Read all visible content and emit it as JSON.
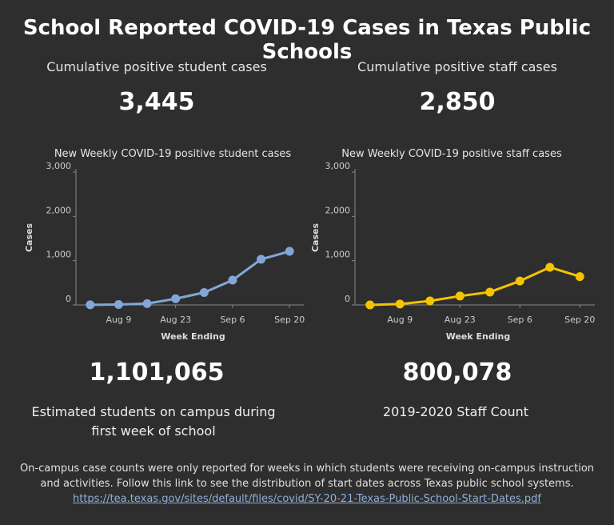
{
  "title": "School Reported COVID-19 Cases in Texas Public Schools",
  "stats": [
    {
      "label": "Cumulative positive student cases",
      "value": "3,445"
    },
    {
      "label": "Cumulative positive staff cases",
      "value": "2,850"
    }
  ],
  "chart_data": [
    {
      "type": "line",
      "title": "New Weekly COVID-19 positive student cases",
      "x_label": "Week Ending",
      "y_label": "Cases",
      "categories": [
        null,
        "Aug 9",
        null,
        "Aug 23",
        null,
        "Sep 6",
        null,
        "Sep 20"
      ],
      "values": [
        2,
        10,
        30,
        140,
        280,
        560,
        1030,
        1210
      ],
      "color": "#82a6d8",
      "ylim": [
        0,
        3000
      ],
      "yticks": [
        0,
        {
          "value": 1000,
          "label": "1,000"
        },
        {
          "value": 2000,
          "label": "2,000"
        },
        {
          "value": 3000,
          "label": "3,000"
        }
      ]
    },
    {
      "type": "line",
      "title": "New Weekly COVID-19 positive staff cases",
      "x_label": "Week Ending",
      "y_label": "Cases",
      "categories": [
        null,
        "Aug 9",
        null,
        "Aug 23",
        null,
        "Sep 6",
        null,
        "Sep 20"
      ],
      "values": [
        0,
        20,
        90,
        200,
        290,
        540,
        850,
        640
      ],
      "color": "#f5c400",
      "ylim": [
        0,
        3000
      ],
      "yticks": [
        0,
        {
          "value": 1000,
          "label": "1,000"
        },
        {
          "value": 2000,
          "label": "2,000"
        },
        {
          "value": 3000,
          "label": "3,000"
        }
      ]
    }
  ],
  "bottom_stats": [
    {
      "value": "1,101,065",
      "label": "Estimated students on campus during first week of school"
    },
    {
      "value": "800,078",
      "label": "2019-2020 Staff Count"
    }
  ],
  "footer": {
    "text": "On-campus case counts were only reported for weeks in which students were receiving on-campus instruction and activities. Follow this link to see the distribution of start dates across Texas public school systems.",
    "link": "https://tea.texas.gov/sites/default/files/covid/SY-20-21-Texas-Public-School-Start-Dates.pdf"
  }
}
